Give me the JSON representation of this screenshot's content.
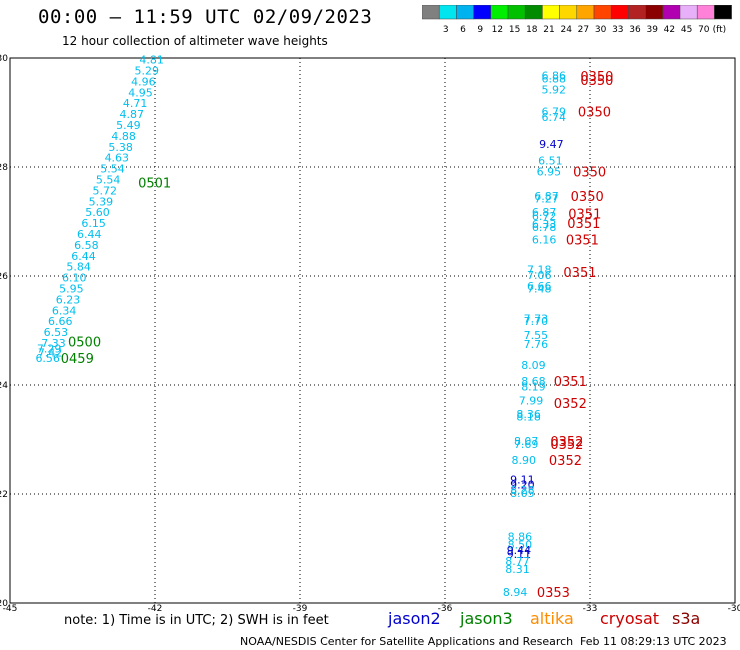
{
  "title": "00:00 — 11:59 UTC 02/09/2023",
  "subtitle": "12 hour collection of altimeter wave heights",
  "colorbar": {
    "labels": [
      "3",
      "6",
      "9",
      "12",
      "15",
      "18",
      "21",
      "24",
      "27",
      "30",
      "33",
      "36",
      "39",
      "42",
      "45",
      "70"
    ],
    "unit": "(ft)",
    "colors": [
      "#808080",
      "#00e5ee",
      "#00b2ee",
      "#0000ff",
      "#00ee00",
      "#00c000",
      "#008b00",
      "#ffff00",
      "#ffd700",
      "#ffa500",
      "#ff4500",
      "#ff0000",
      "#b22222",
      "#8b0000",
      "#b000b0",
      "#e8b0f8",
      "#ff82d8",
      "#000000"
    ]
  },
  "note": "note: 1) Time is in UTC; 2) SWH is in feet",
  "satellites": [
    {
      "name": "jason2",
      "color": "#0000cc"
    },
    {
      "name": "jason3",
      "color": "#008000"
    },
    {
      "name": "altika",
      "color": "#ff8c00"
    },
    {
      "name": "cryosat",
      "color": "#cc0000"
    },
    {
      "name": "s3a",
      "color": "#8b0000"
    }
  ],
  "credit": "NOAA/NESDIS Center for Satellite Applications and Research",
  "timestamp": "Feb 11 08:29:13 UTC 2023",
  "chart_data": {
    "type": "scatter",
    "xlim": [
      -45,
      -30
    ],
    "ylim": [
      20,
      30
    ],
    "x_ticks": [
      -45,
      -42,
      -39,
      -36,
      -33,
      -30
    ],
    "x_tick_labels": [
      "-45",
      "-42",
      "-39",
      "-36",
      "-33",
      "-30"
    ],
    "y_ticks": [
      20,
      22,
      24,
      26,
      28,
      30
    ],
    "y_tick_labels": [
      "20",
      "22",
      "24",
      "26",
      "28",
      "30"
    ],
    "grid": true,
    "swh_points": [
      {
        "lon": -42.07,
        "lat": 29.97,
        "swh": "4.81",
        "color": "#00bfee"
      },
      {
        "lon": -42.17,
        "lat": 29.77,
        "swh": "5.29",
        "color": "#00bfee"
      },
      {
        "lon": -42.24,
        "lat": 29.57,
        "swh": "4.96",
        "color": "#00bfee"
      },
      {
        "lon": -42.3,
        "lat": 29.37,
        "swh": "4.95",
        "color": "#00bfee"
      },
      {
        "lon": -42.41,
        "lat": 29.17,
        "swh": "4.71",
        "color": "#00bfee"
      },
      {
        "lon": -42.48,
        "lat": 28.97,
        "swh": "4.87",
        "color": "#00bfee"
      },
      {
        "lon": -42.55,
        "lat": 28.77,
        "swh": "5.49",
        "color": "#00bfee"
      },
      {
        "lon": -42.65,
        "lat": 28.57,
        "swh": "4.88",
        "color": "#00bfee"
      },
      {
        "lon": -42.71,
        "lat": 28.37,
        "swh": "5.38",
        "color": "#00bfee"
      },
      {
        "lon": -42.79,
        "lat": 28.17,
        "swh": "4.63",
        "color": "#00bfee"
      },
      {
        "lon": -42.88,
        "lat": 27.97,
        "swh": "5.54",
        "color": "#00bfee"
      },
      {
        "lon": -42.97,
        "lat": 27.77,
        "swh": "5.54",
        "color": "#00bfee"
      },
      {
        "lon": -43.04,
        "lat": 27.57,
        "swh": "5.72",
        "color": "#00bfee"
      },
      {
        "lon": -43.12,
        "lat": 27.37,
        "swh": "5.39",
        "color": "#00bfee"
      },
      {
        "lon": -43.19,
        "lat": 27.17,
        "swh": "5.60",
        "color": "#00bfee"
      },
      {
        "lon": -43.27,
        "lat": 26.97,
        "swh": "6.15",
        "color": "#00bfee"
      },
      {
        "lon": -43.36,
        "lat": 26.77,
        "swh": "6.44",
        "color": "#00bfee"
      },
      {
        "lon": -43.42,
        "lat": 26.57,
        "swh": "6.58",
        "color": "#00bfee"
      },
      {
        "lon": -43.48,
        "lat": 26.37,
        "swh": "6.44",
        "color": "#00bfee"
      },
      {
        "lon": -43.58,
        "lat": 26.17,
        "swh": "5.84",
        "color": "#00bfee"
      },
      {
        "lon": -43.67,
        "lat": 25.97,
        "swh": "6.10",
        "color": "#00bfee"
      },
      {
        "lon": -43.73,
        "lat": 25.77,
        "swh": "5.95",
        "color": "#00bfee"
      },
      {
        "lon": -43.8,
        "lat": 25.57,
        "swh": "6.23",
        "color": "#00bfee"
      },
      {
        "lon": -43.88,
        "lat": 25.37,
        "swh": "6.34",
        "color": "#00bfee"
      },
      {
        "lon": -43.96,
        "lat": 25.17,
        "swh": "6.66",
        "color": "#00bfee"
      },
      {
        "lon": -44.05,
        "lat": 24.97,
        "swh": "6.53",
        "color": "#00bfee"
      },
      {
        "lon": -44.1,
        "lat": 24.77,
        "swh": "7.33",
        "color": "#00bfee"
      },
      {
        "lon": -44.19,
        "lat": 24.67,
        "swh": "7.29",
        "color": "#00bfee"
      },
      {
        "lon": -44.17,
        "lat": 24.6,
        "swh": "7.42",
        "color": "#00bfee"
      },
      {
        "lon": -44.22,
        "lat": 24.5,
        "swh": "6.56",
        "color": "#00bfee"
      },
      {
        "lon": -33.75,
        "lat": 29.68,
        "swh": "6.86",
        "color": "#00bfee"
      },
      {
        "lon": -33.75,
        "lat": 29.62,
        "swh": "6.88",
        "color": "#00bfee"
      },
      {
        "lon": -33.75,
        "lat": 29.42,
        "swh": "5.92",
        "color": "#00bfee"
      },
      {
        "lon": -33.75,
        "lat": 29.02,
        "swh": "6.79",
        "color": "#00bfee"
      },
      {
        "lon": -33.75,
        "lat": 28.92,
        "swh": "6.74",
        "color": "#00bfee"
      },
      {
        "lon": -33.8,
        "lat": 28.42,
        "swh": "9.47",
        "color": "#0000cc"
      },
      {
        "lon": -33.82,
        "lat": 28.12,
        "swh": "6.51",
        "color": "#00bfee"
      },
      {
        "lon": -33.85,
        "lat": 27.92,
        "swh": "6.95",
        "color": "#00bfee"
      },
      {
        "lon": -33.9,
        "lat": 27.47,
        "swh": "6.87",
        "color": "#00bfee"
      },
      {
        "lon": -33.9,
        "lat": 27.42,
        "swh": "7.27",
        "color": "#00bfee"
      },
      {
        "lon": -33.95,
        "lat": 27.17,
        "swh": "6.87",
        "color": "#00bfee"
      },
      {
        "lon": -33.95,
        "lat": 27.1,
        "swh": "6.72",
        "color": "#00bfee"
      },
      {
        "lon": -33.95,
        "lat": 26.95,
        "swh": "6.33",
        "color": "#00bfee"
      },
      {
        "lon": -33.95,
        "lat": 26.9,
        "swh": "6.78",
        "color": "#00bfee"
      },
      {
        "lon": -33.95,
        "lat": 26.67,
        "swh": "6.16",
        "color": "#00bfee"
      },
      {
        "lon": -34.05,
        "lat": 26.12,
        "swh": "7.18",
        "color": "#00bfee"
      },
      {
        "lon": -34.05,
        "lat": 26.02,
        "swh": "7.06",
        "color": "#00bfee"
      },
      {
        "lon": -34.05,
        "lat": 25.82,
        "swh": "6.66",
        "color": "#00bfee"
      },
      {
        "lon": -34.05,
        "lat": 25.77,
        "swh": "7.48",
        "color": "#00bfee"
      },
      {
        "lon": -34.12,
        "lat": 25.22,
        "swh": "7.73",
        "color": "#00bfee"
      },
      {
        "lon": -34.12,
        "lat": 25.17,
        "swh": "7.70",
        "color": "#00bfee"
      },
      {
        "lon": -34.12,
        "lat": 24.92,
        "swh": "7.55",
        "color": "#00bfee"
      },
      {
        "lon": -34.12,
        "lat": 24.75,
        "swh": "7.76",
        "color": "#00bfee"
      },
      {
        "lon": -34.17,
        "lat": 24.37,
        "swh": "8.09",
        "color": "#00bfee"
      },
      {
        "lon": -34.17,
        "lat": 24.07,
        "swh": "8.68",
        "color": "#00bfee"
      },
      {
        "lon": -34.17,
        "lat": 23.97,
        "swh": "8.19",
        "color": "#00bfee"
      },
      {
        "lon": -34.22,
        "lat": 23.72,
        "swh": "7.99",
        "color": "#00bfee"
      },
      {
        "lon": -34.27,
        "lat": 23.47,
        "swh": "8.36",
        "color": "#00bfee"
      },
      {
        "lon": -34.27,
        "lat": 23.42,
        "swh": "8.18",
        "color": "#00bfee"
      },
      {
        "lon": -34.32,
        "lat": 22.97,
        "swh": "8.07",
        "color": "#00bfee"
      },
      {
        "lon": -34.32,
        "lat": 22.92,
        "swh": "7.69",
        "color": "#00bfee"
      },
      {
        "lon": -34.37,
        "lat": 22.62,
        "swh": "8.90",
        "color": "#00bfee"
      },
      {
        "lon": -34.4,
        "lat": 22.27,
        "swh": "9.11",
        "color": "#0000cc"
      },
      {
        "lon": -34.4,
        "lat": 22.17,
        "swh": "9.20",
        "color": "#0000cc"
      },
      {
        "lon": -34.4,
        "lat": 22.07,
        "swh": "8.28",
        "color": "#00bfee"
      },
      {
        "lon": -34.4,
        "lat": 22.02,
        "swh": "8.05",
        "color": "#00bfee"
      },
      {
        "lon": -34.45,
        "lat": 21.22,
        "swh": "8.86",
        "color": "#00bfee"
      },
      {
        "lon": -34.45,
        "lat": 21.07,
        "swh": "8.50",
        "color": "#00bfee"
      },
      {
        "lon": -34.47,
        "lat": 20.97,
        "swh": "9.44",
        "color": "#0000cc"
      },
      {
        "lon": -34.47,
        "lat": 20.9,
        "swh": "9.11",
        "color": "#0000cc"
      },
      {
        "lon": -34.5,
        "lat": 20.77,
        "swh": "8.77",
        "color": "#00bfee"
      },
      {
        "lon": -34.5,
        "lat": 20.62,
        "swh": "8.31",
        "color": "#00bfee"
      },
      {
        "lon": -34.55,
        "lat": 20.2,
        "swh": "8.94",
        "color": "#00bfee"
      }
    ],
    "time_labels": [
      {
        "lon": -42.35,
        "lat": 27.72,
        "label": "0501",
        "color": "#008000"
      },
      {
        "lon": -43.8,
        "lat": 24.8,
        "label": "0500",
        "color": "#008000"
      },
      {
        "lon": -43.95,
        "lat": 24.5,
        "label": "0459",
        "color": "#008000"
      },
      {
        "lon": -33.2,
        "lat": 29.67,
        "label": "0350",
        "color": "#cc0000"
      },
      {
        "lon": -33.2,
        "lat": 29.6,
        "label": "0350",
        "color": "#cc0000"
      },
      {
        "lon": -33.25,
        "lat": 29.02,
        "label": "0350",
        "color": "#cc0000"
      },
      {
        "lon": -33.35,
        "lat": 27.92,
        "label": "0350",
        "color": "#cc0000"
      },
      {
        "lon": -33.4,
        "lat": 27.47,
        "label": "0350",
        "color": "#cc0000"
      },
      {
        "lon": -33.45,
        "lat": 27.15,
        "label": "0351",
        "color": "#cc0000"
      },
      {
        "lon": -33.47,
        "lat": 26.97,
        "label": "0351",
        "color": "#cc0000"
      },
      {
        "lon": -33.5,
        "lat": 26.67,
        "label": "0351",
        "color": "#cc0000"
      },
      {
        "lon": -33.55,
        "lat": 26.07,
        "label": "0351",
        "color": "#cc0000"
      },
      {
        "lon": -33.75,
        "lat": 24.07,
        "label": "0351",
        "color": "#cc0000"
      },
      {
        "lon": -33.75,
        "lat": 23.67,
        "label": "0352",
        "color": "#cc0000"
      },
      {
        "lon": -33.82,
        "lat": 22.97,
        "label": "0352",
        "color": "#cc0000"
      },
      {
        "lon": -33.82,
        "lat": 22.92,
        "label": "0352",
        "color": "#cc0000"
      },
      {
        "lon": -33.85,
        "lat": 22.62,
        "label": "0352",
        "color": "#cc0000"
      },
      {
        "lon": -34.1,
        "lat": 20.2,
        "label": "0353",
        "color": "#cc0000"
      }
    ]
  }
}
